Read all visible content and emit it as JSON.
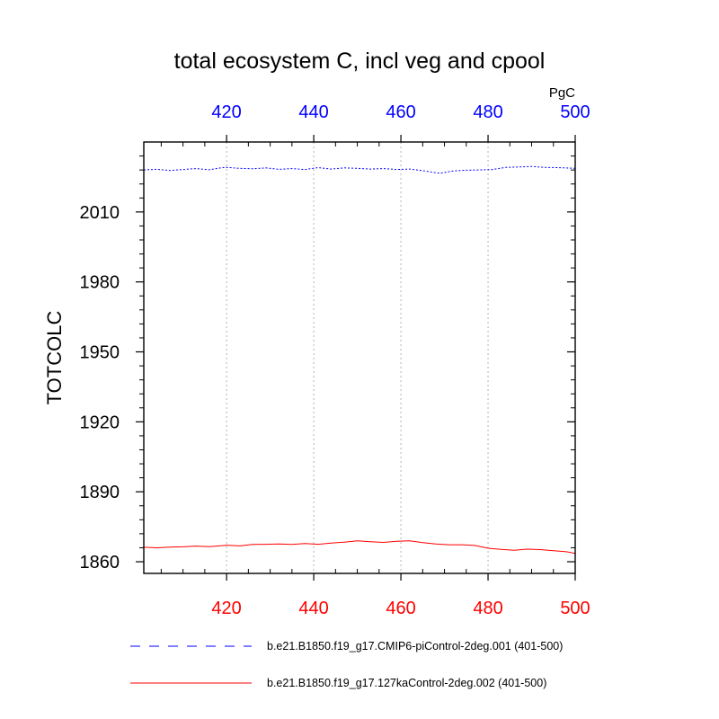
{
  "chart_data": {
    "type": "line",
    "title": "total ecosystem C, incl veg and cpool",
    "ylabel": "TOTCOLC",
    "units": "PgC",
    "xlim": [
      401,
      500
    ],
    "ylim": [
      1855,
      2040
    ],
    "x_ticks": [
      420,
      440,
      460,
      480,
      500
    ],
    "y_ticks": [
      1860,
      1890,
      1920,
      1950,
      1980,
      2010
    ],
    "top_axis_color": "#0000ff",
    "bottom_axis_color": "#ff0000",
    "grid": "vertical dotted at major x ticks",
    "legend_placement": "bottom",
    "series": [
      {
        "name": "b.e21.B1850.f19_g17.CMIP6-piControl-2deg.001 (401-500)",
        "color": "#0000ff",
        "dash": "dashed",
        "x": [
          401,
          404,
          407,
          410,
          413,
          416,
          419,
          420,
          423,
          426,
          429,
          432,
          435,
          438,
          441,
          444,
          447,
          450,
          453,
          456,
          459,
          462,
          465,
          468,
          469,
          472,
          475,
          478,
          481,
          484,
          487,
          490,
          493,
          496,
          500
        ],
        "y": [
          2028.0,
          2028.3,
          2027.8,
          2028.2,
          2028.6,
          2028.1,
          2029.0,
          2029.1,
          2028.7,
          2028.5,
          2028.9,
          2028.3,
          2028.6,
          2028.2,
          2029.0,
          2028.4,
          2028.9,
          2028.7,
          2028.4,
          2028.6,
          2028.2,
          2028.4,
          2027.7,
          2026.8,
          2026.6,
          2027.6,
          2027.9,
          2028.0,
          2028.2,
          2029.1,
          2029.3,
          2029.5,
          2029.1,
          2029.0,
          2028.7
        ]
      },
      {
        "name": "b.e21.B1850.f19_g17.127kaControl-2deg.002 (401-500)",
        "color": "#ff0000",
        "dash": "solid",
        "x": [
          401,
          404,
          407,
          410,
          413,
          416,
          419,
          420,
          423,
          426,
          429,
          432,
          435,
          438,
          441,
          444,
          447,
          450,
          453,
          456,
          459,
          462,
          465,
          468,
          471,
          474,
          477,
          480,
          483,
          486,
          489,
          492,
          495,
          498,
          500
        ],
        "y": [
          1866.2,
          1866.0,
          1866.3,
          1866.4,
          1866.7,
          1866.5,
          1866.9,
          1867.1,
          1866.8,
          1867.4,
          1867.5,
          1867.6,
          1867.4,
          1867.8,
          1867.5,
          1868.0,
          1868.4,
          1869.0,
          1868.6,
          1868.3,
          1868.8,
          1869.0,
          1868.2,
          1867.6,
          1867.3,
          1867.3,
          1867.0,
          1865.8,
          1865.3,
          1864.9,
          1865.4,
          1865.2,
          1864.7,
          1864.3,
          1863.6
        ]
      }
    ]
  }
}
